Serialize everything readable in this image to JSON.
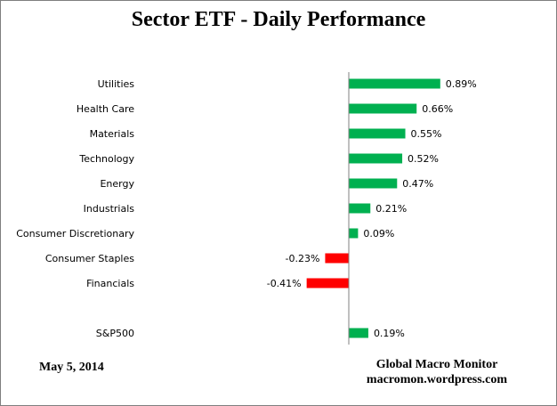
{
  "chart_data": {
    "type": "bar",
    "orientation": "horizontal",
    "title": "Sector ETF - Daily Performance",
    "categories": [
      "Utilities",
      "Health Care",
      "Materials",
      "Technology",
      "Energy",
      "Industrials",
      "Consumer Discretionary",
      "Consumer Staples",
      "Financials",
      "",
      "S&P500"
    ],
    "values": [
      0.89,
      0.66,
      0.55,
      0.52,
      0.47,
      0.21,
      0.09,
      -0.23,
      -0.41,
      null,
      0.19
    ],
    "value_labels": [
      "0.89%",
      "0.66%",
      "0.55%",
      "0.52%",
      "0.47%",
      "0.21%",
      "0.09%",
      "-0.23%",
      "-0.41%",
      "",
      "0.19%"
    ],
    "unit": "%",
    "grid": false,
    "legend": "none",
    "colors": {
      "positive": "#00b050",
      "negative": "#ff0000",
      "axis": "#808080"
    }
  },
  "footer": {
    "date": "May 5, 2014",
    "source_name": "Global Macro Monitor",
    "source_url": "macromon.wordpress.com"
  }
}
